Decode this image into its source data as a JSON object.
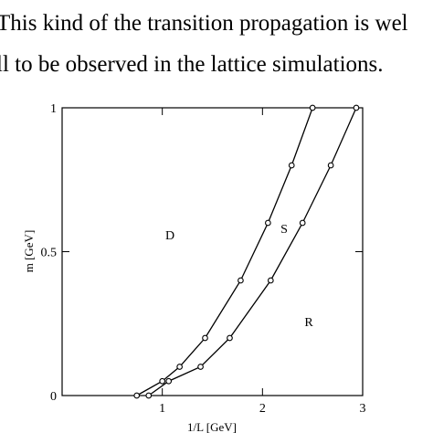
{
  "text_lines": [
    "This kind of the transition propagation is wel",
    "ll to be observed in the lattice simulations."
  ],
  "chart_data": {
    "type": "line",
    "xlabel": "1/L [GeV]",
    "ylabel": "m [GeV]",
    "xlim": [
      0,
      3
    ],
    "ylim": [
      0,
      1
    ],
    "xticks": [
      1,
      2,
      3
    ],
    "yticks": [
      0,
      0.5,
      1
    ],
    "annotations": [
      "D",
      "S",
      "R"
    ],
    "series": [
      {
        "color": "#000000",
        "x": [
          0.745,
          1.0,
          1.173,
          1.427,
          1.782,
          2.055,
          2.291,
          2.5
        ],
        "values": [
          0,
          0.05,
          0.1,
          0.2,
          0.4,
          0.6,
          0.8,
          1.0
        ]
      },
      {
        "color": "#000000",
        "x": [
          0.864,
          1.064,
          1.382,
          1.673,
          2.082,
          2.4,
          2.682,
          2.936
        ],
        "values": [
          0,
          0.05,
          0.1,
          0.2,
          0.4,
          0.6,
          0.8,
          1.0
        ]
      }
    ]
  }
}
